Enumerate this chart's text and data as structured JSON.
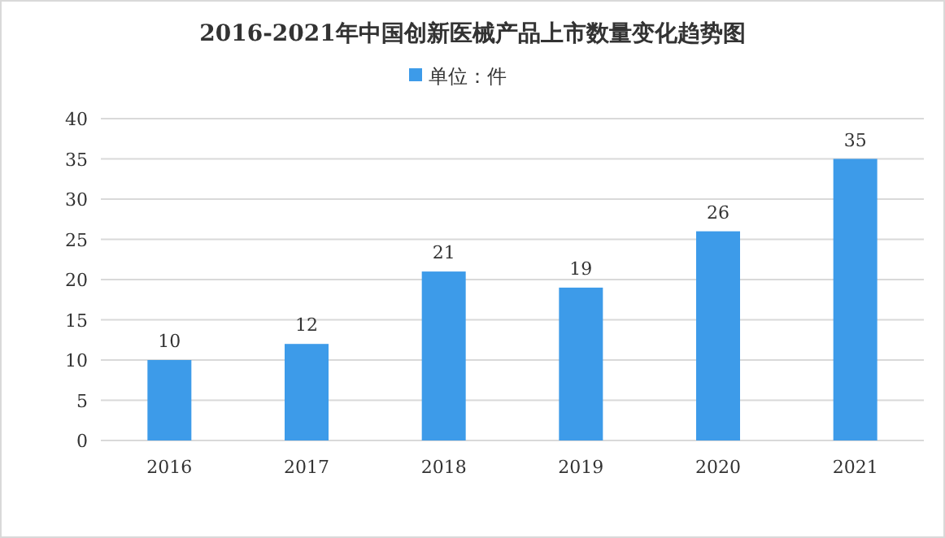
{
  "chart_data": {
    "type": "bar",
    "title": "2016-2021年中国创新医械产品上市数量变化趋势图",
    "categories": [
      "2016",
      "2017",
      "2018",
      "2019",
      "2020",
      "2021"
    ],
    "series": [
      {
        "name": "单位：件",
        "color": "#3d9be9",
        "values": [
          10,
          12,
          21,
          19,
          26,
          35
        ]
      }
    ],
    "ylim": [
      0,
      40
    ],
    "yticks": [
      0,
      5,
      10,
      15,
      20,
      25,
      30,
      35,
      40
    ],
    "grid": "y",
    "legend": "top",
    "data_labels": true
  }
}
